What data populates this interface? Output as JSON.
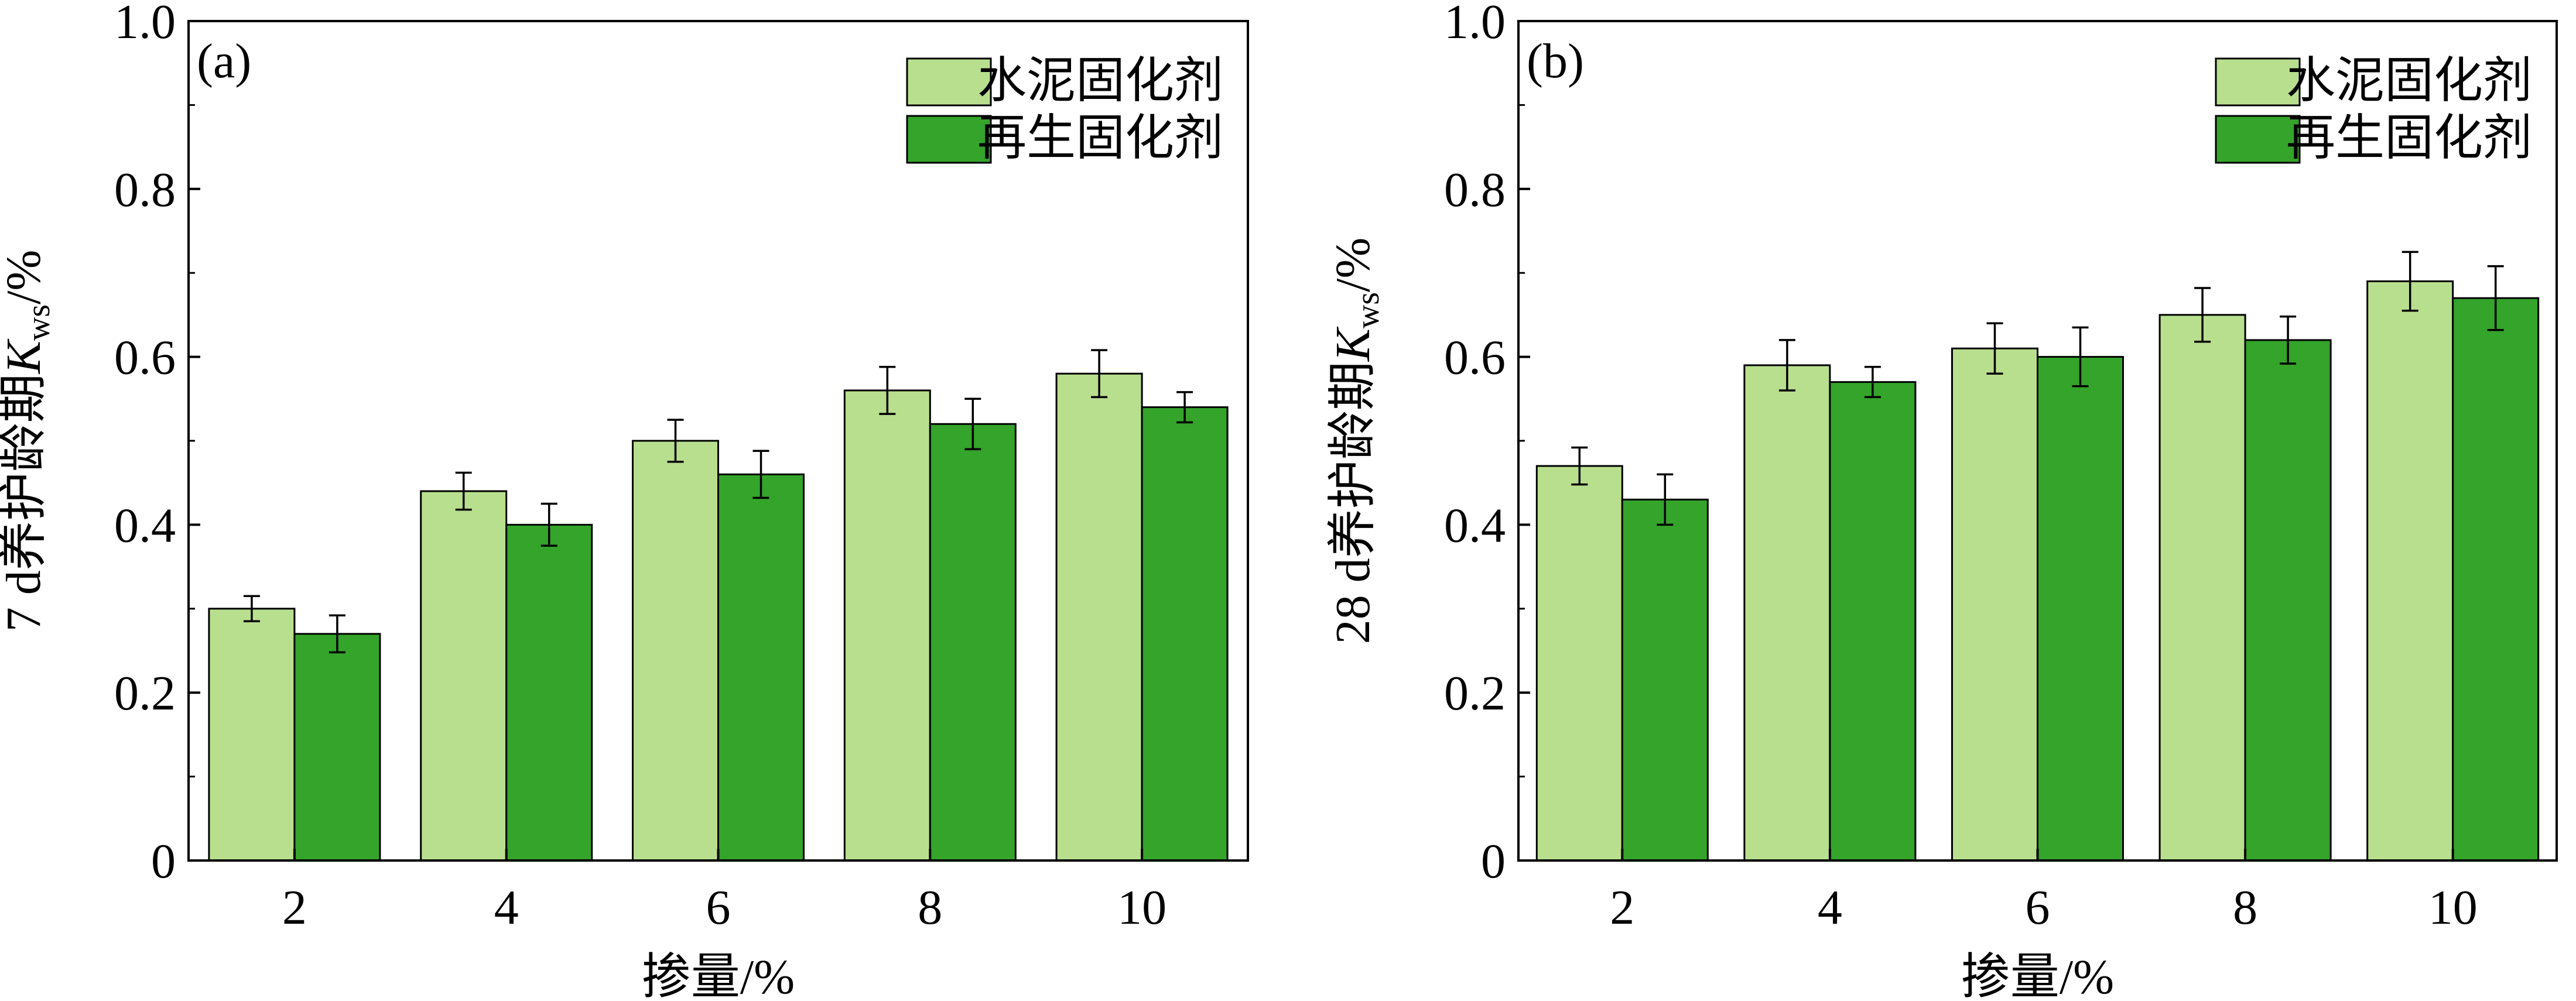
{
  "chart_data": [
    {
      "type": "bar",
      "panel_label": "(a)",
      "categories": [
        "2",
        "4",
        "6",
        "8",
        "10"
      ],
      "series": [
        {
          "name": "水泥固化剂",
          "color": "#b8df8e",
          "values": [
            0.3,
            0.44,
            0.5,
            0.56,
            0.58
          ],
          "errors": [
            0.015,
            0.022,
            0.025,
            0.028,
            0.028
          ]
        },
        {
          "name": "再生固化剂",
          "color": "#34a42b",
          "values": [
            0.27,
            0.4,
            0.46,
            0.52,
            0.54
          ],
          "errors": [
            0.022,
            0.025,
            0.028,
            0.03,
            0.018
          ]
        }
      ],
      "xlabel": "掺量/%",
      "ylabel": {
        "prefix": "7 d养护龄期",
        "symbol": "K",
        "subscript": "ws",
        "suffix": "/%"
      },
      "ylim": [
        0,
        1.0
      ],
      "yticks": [
        "0",
        "0.2",
        "0.4",
        "0.6",
        "0.8",
        "1.0"
      ],
      "grid": false,
      "legend_position": "top-right"
    },
    {
      "type": "bar",
      "panel_label": "(b)",
      "categories": [
        "2",
        "4",
        "6",
        "8",
        "10"
      ],
      "series": [
        {
          "name": "水泥固化剂",
          "color": "#b8df8e",
          "values": [
            0.47,
            0.59,
            0.61,
            0.65,
            0.69
          ],
          "errors": [
            0.022,
            0.03,
            0.03,
            0.032,
            0.035
          ]
        },
        {
          "name": "再生固化剂",
          "color": "#34a42b",
          "values": [
            0.43,
            0.57,
            0.6,
            0.62,
            0.67
          ],
          "errors": [
            0.03,
            0.018,
            0.035,
            0.028,
            0.038
          ]
        }
      ],
      "xlabel": "掺量/%",
      "ylabel": {
        "prefix": "28 d养护龄期",
        "symbol": "K",
        "subscript": "ws",
        "suffix": "/%"
      },
      "ylim": [
        0,
        1.0
      ],
      "yticks": [
        "0",
        "0.2",
        "0.4",
        "0.6",
        "0.8",
        "1.0"
      ],
      "grid": false,
      "legend_position": "top-right"
    }
  ]
}
